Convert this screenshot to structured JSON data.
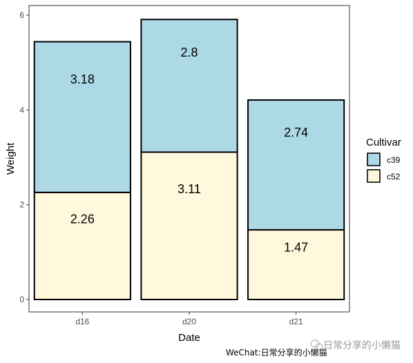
{
  "chart_data": {
    "type": "bar",
    "stacked": true,
    "categories": [
      "d16",
      "d20",
      "d21"
    ],
    "series": [
      {
        "name": "c52",
        "values": [
          2.26,
          3.11,
          1.47
        ],
        "color": "#fff8dc"
      },
      {
        "name": "c39",
        "values": [
          3.18,
          2.8,
          2.74
        ],
        "color": "#add8e6"
      }
    ],
    "xlabel": "Date",
    "ylabel": "Weight",
    "ylim": [
      -0.3,
      6.2
    ],
    "yticks": [
      0,
      2,
      4,
      6
    ],
    "legend": {
      "title": "Cultivar",
      "entries": [
        "c39",
        "c52"
      ],
      "position": "right"
    },
    "grid": false
  },
  "caption": "WeChat:日常分享的小懒猫",
  "watermark": "日常分享的小懒猫"
}
